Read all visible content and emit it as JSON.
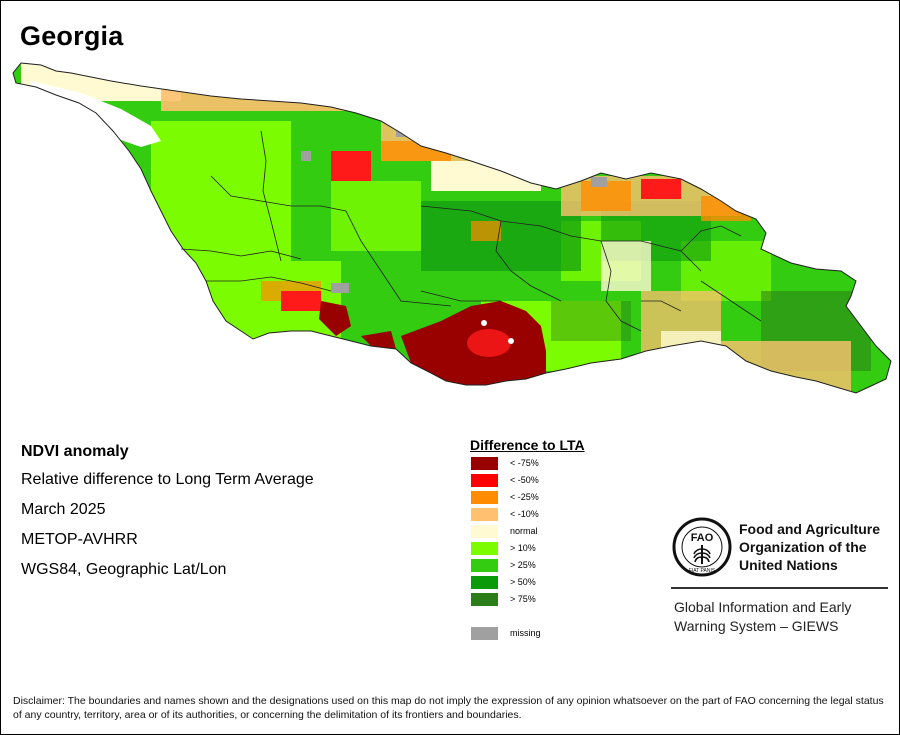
{
  "map": {
    "title": "Georgia",
    "region": "Georgia",
    "layer": "NDVI anomaly",
    "colors": {
      "lt_75": "#990000",
      "lt_50": "#ff1a1a",
      "lt_25": "#ff8c00",
      "lt_10": "#ffc070",
      "normal": "#fffad2",
      "gt_10": "#7cfc00",
      "gt_25": "#33cc11",
      "gt_50": "#0f9a0f",
      "gt_75": "#2b7d1a",
      "missing": "#a0a0a0",
      "water": "#ffffff",
      "boundary": "#202020"
    }
  },
  "info": {
    "heading": "NDVI anomaly",
    "subtitle": "Relative difference to Long Term Average",
    "date": "March 2025",
    "sensor": "METOP-AVHRR",
    "projection": "WGS84, Geographic Lat/Lon"
  },
  "legend": {
    "title": "Difference to LTA",
    "items": [
      {
        "label": "< -75%",
        "color": "#990000"
      },
      {
        "label": "< -50%",
        "color": "#ff0000"
      },
      {
        "label": "< -25%",
        "color": "#ff8c00"
      },
      {
        "label": "< -10%",
        "color": "#ffc070"
      },
      {
        "label": "normal",
        "color": "#fffad2"
      },
      {
        "label": "> 10%",
        "color": "#7cfc00"
      },
      {
        "label": "> 25%",
        "color": "#33cc11"
      },
      {
        "label": "> 50%",
        "color": "#0a9a0a"
      },
      {
        "label": "> 75%",
        "color": "#2b7d1a"
      }
    ],
    "missing": {
      "label": "missing",
      "color": "#a0a0a0"
    }
  },
  "fao": {
    "name_lines": [
      "Food and Agriculture",
      "Organization of the",
      "United Nations"
    ],
    "emblem_letters": "FAO",
    "emblem_ring": "FIAT PANIS",
    "system_lines": [
      "Global Information and Early",
      "Warning System – GIEWS"
    ]
  },
  "disclaimer": "Disclaimer: The boundaries and names shown and the designations used on this map do not imply the expression of any opinion whatsoever on the part of FAO concerning the legal status of any country, territory, area or of its authorities, or concerning the delimitation of its frontiers and boundaries."
}
